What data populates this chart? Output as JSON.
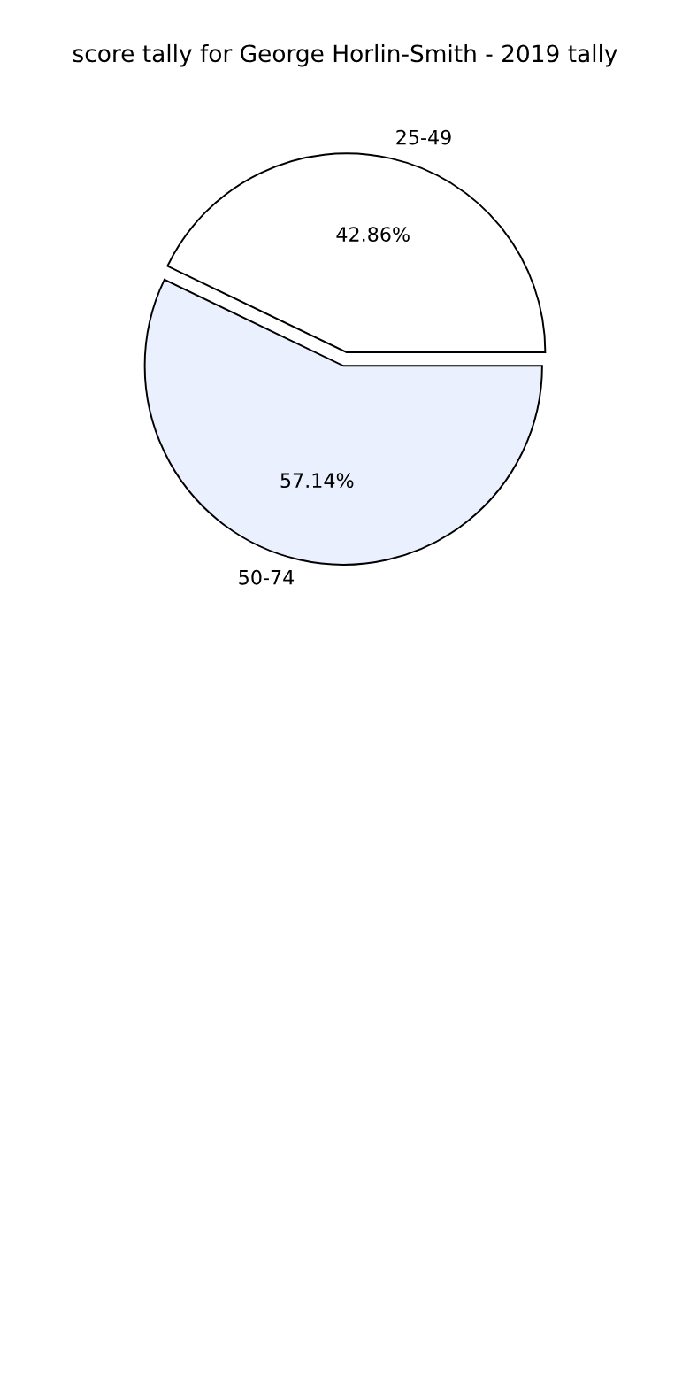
{
  "chart_data": {
    "type": "pie",
    "title": "score tally for George Horlin-Smith - 2019 tally",
    "categories": [
      "25-49",
      "50-74"
    ],
    "values": [
      42.86,
      57.14
    ],
    "colors": [
      "#ffffff",
      "#eaf0fd"
    ],
    "value_labels": [
      "42.86%",
      "57.14%"
    ]
  }
}
